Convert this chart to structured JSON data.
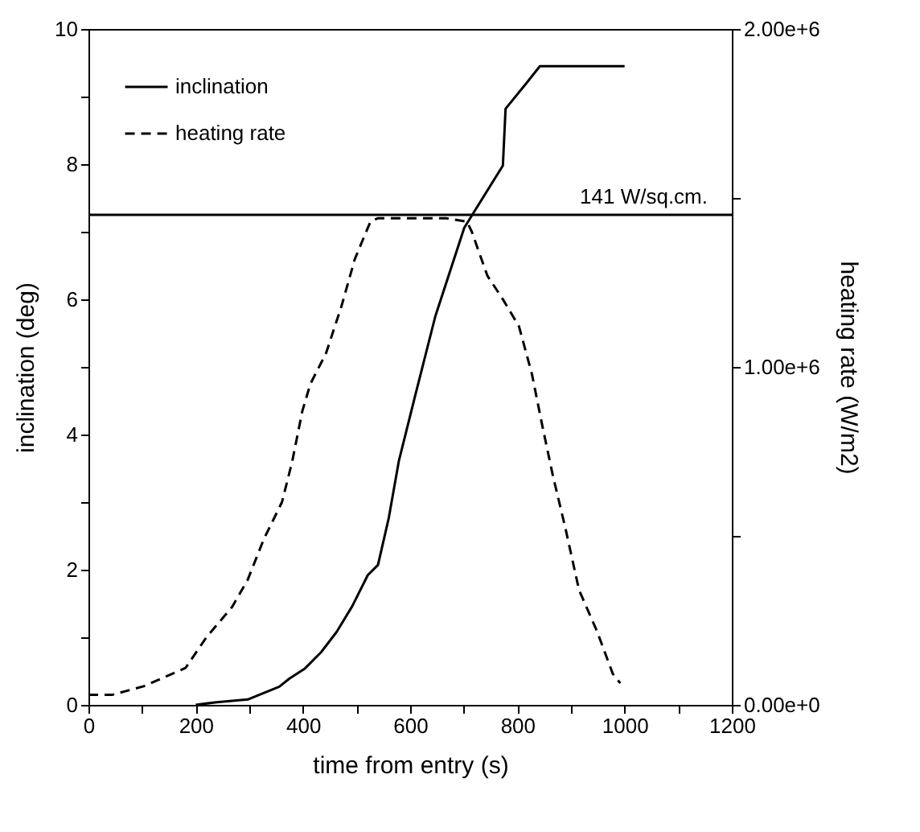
{
  "chart_data": {
    "type": "line",
    "xlabel": "time from entry (s)",
    "ylabel": "inclination (deg)",
    "y2label": "heating rate (W/m2)",
    "xlim": [
      0,
      1200
    ],
    "xticks": [
      0,
      {
        "value": 100,
        "label": null
      },
      200,
      {
        "value": 300,
        "label": null
      },
      400,
      {
        "value": 500,
        "label": null
      },
      600,
      {
        "value": 700,
        "label": null
      },
      800,
      {
        "value": 900,
        "label": null
      },
      1000,
      {
        "value": 1100,
        "label": null
      },
      1200
    ],
    "ylim": [
      0,
      10
    ],
    "yticks": [
      0,
      {
        "value": 1,
        "label": null
      },
      2,
      {
        "value": 3,
        "label": null
      },
      4,
      {
        "value": 5,
        "label": null
      },
      6,
      {
        "value": 7,
        "label": null
      },
      8,
      {
        "value": 9,
        "label": null
      },
      10
    ],
    "y2lim": [
      0,
      2000000
    ],
    "y2ticks": [
      {
        "value": 0,
        "label": "0.00e+0"
      },
      {
        "value": 500000,
        "label": null
      },
      {
        "value": 1000000,
        "label": "1.00e+6"
      },
      {
        "value": 1500000,
        "label": null
      },
      {
        "value": 2000000,
        "label": "2.00e+6"
      }
    ],
    "series": [
      {
        "name": "inclination",
        "color": "#000000",
        "line_style": "solid",
        "x": [
          200,
          239,
          297,
          356,
          375,
          404,
          434,
          463,
          492,
          521,
          540,
          560,
          579,
          608,
          647,
          701,
          773,
          778,
          817,
          842,
          1000
        ],
        "values": [
          0,
          0.04,
          0.08,
          0.27,
          0.39,
          0.54,
          0.78,
          1.08,
          1.46,
          1.92,
          2.07,
          2.76,
          3.61,
          4.53,
          5.75,
          7.06,
          7.98,
          8.82,
          9.2,
          9.45,
          9.45
        ]
      },
      {
        "name": "heating rate",
        "color": "#000000",
        "line_style": "dashed",
        "axis": "y2",
        "x": [
          0,
          45,
          103,
          181,
          220,
          268,
          297,
          327,
          361,
          380,
          399,
          414,
          443,
          472,
          497,
          526,
          540,
          667,
          706,
          715,
          744,
          773,
          803,
          827,
          846,
          866,
          890,
          915,
          948,
          978,
          992
        ],
        "values": [
          30000,
          30000,
          55000,
          109000,
          200000,
          290000,
          370000,
          490000,
          600000,
          720000,
          870000,
          950000,
          1040000,
          1180000,
          1320000,
          1430000,
          1440000,
          1440000,
          1430000,
          1400000,
          1270000,
          1200000,
          1120000,
          980000,
          830000,
          680000,
          520000,
          340000,
          220000,
          92000,
          64000
        ]
      }
    ],
    "ref_lines": [
      {
        "axis": "y2",
        "value": 1450000,
        "label": "141  W/sq.cm.",
        "color": "#000000",
        "line_style": "solid"
      }
    ],
    "legend": "top left",
    "grid": false,
    "marker": "none"
  }
}
